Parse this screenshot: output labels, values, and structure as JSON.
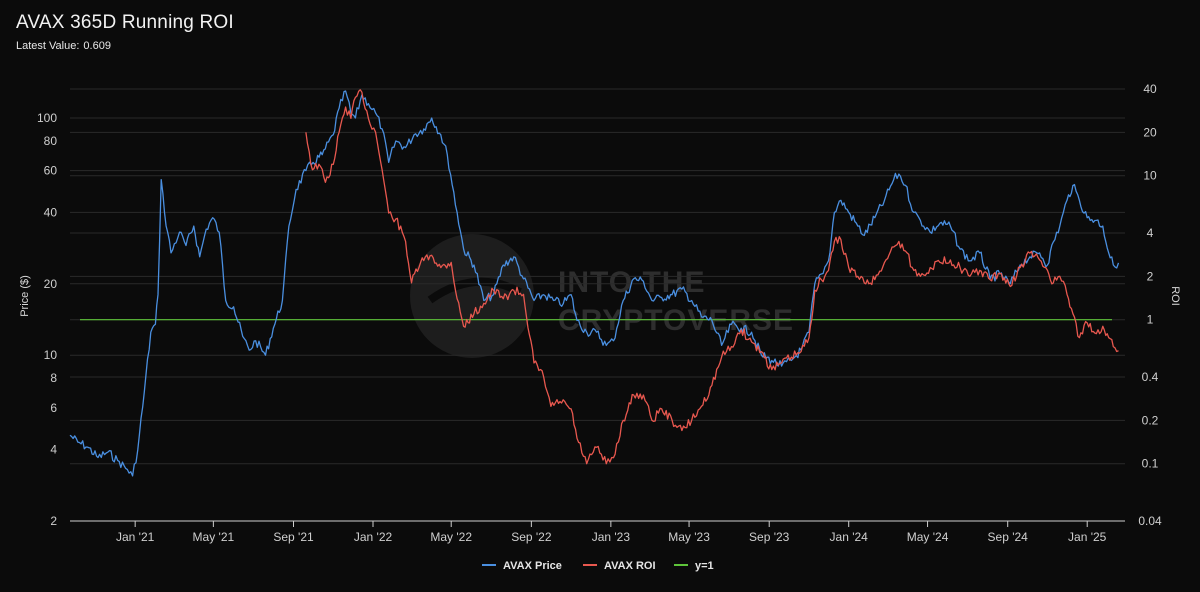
{
  "header": {
    "title": "AVAX 365D Running ROI",
    "latest_label": "Latest Value:",
    "latest_value": "0.609"
  },
  "watermark": {
    "line1": "INTO THE",
    "line2": "CRYPTOVERSE"
  },
  "colors": {
    "background": "#0b0b0b",
    "grid": "#2a2a2a",
    "price": "#4a8fe0",
    "roi": "#e8584f",
    "reference": "#5ec43a"
  },
  "chart_data": {
    "type": "line",
    "title": "AVAX 365D Running ROI",
    "x_type": "date",
    "x_range": [
      "2020-09-23",
      "2025-02-28"
    ],
    "x_ticks": [
      {
        "date": "2021-01-01",
        "label": "Jan '21"
      },
      {
        "date": "2021-05-01",
        "label": "May '21"
      },
      {
        "date": "2021-09-01",
        "label": "Sep '21"
      },
      {
        "date": "2022-01-01",
        "label": "Jan '22"
      },
      {
        "date": "2022-05-01",
        "label": "May '22"
      },
      {
        "date": "2022-09-01",
        "label": "Sep '22"
      },
      {
        "date": "2023-01-01",
        "label": "Jan '23"
      },
      {
        "date": "2023-05-01",
        "label": "May '23"
      },
      {
        "date": "2023-09-01",
        "label": "Sep '23"
      },
      {
        "date": "2024-01-01",
        "label": "Jan '24"
      },
      {
        "date": "2024-05-01",
        "label": "May '24"
      },
      {
        "date": "2024-09-01",
        "label": "Sep '24"
      },
      {
        "date": "2025-01-01",
        "label": "Jan '25"
      }
    ],
    "y_left": {
      "label": "Price ($)",
      "scale": "log",
      "range": [
        1.6,
        150
      ],
      "ticks": [
        2,
        4,
        6,
        8,
        10,
        20,
        40,
        60,
        80,
        100
      ]
    },
    "y_right": {
      "label": "ROI",
      "scale": "log",
      "range": [
        0.04,
        40
      ],
      "ticks": [
        0.04,
        0.1,
        0.2,
        0.4,
        1,
        2,
        4,
        10,
        20,
        40
      ]
    },
    "grid": true,
    "legend_position": "bottom-center",
    "series": [
      {
        "name": "AVAX Price",
        "axis": "left",
        "color": "#4a8fe0",
        "points": [
          [
            "2020-09-23",
            4.6
          ],
          [
            "2020-10-05",
            4.3
          ],
          [
            "2020-10-20",
            4.1
          ],
          [
            "2020-11-05",
            3.7
          ],
          [
            "2020-11-20",
            3.9
          ],
          [
            "2020-12-05",
            3.6
          ],
          [
            "2020-12-20",
            3.3
          ],
          [
            "2020-12-28",
            3.1
          ],
          [
            "2021-01-05",
            4.0
          ],
          [
            "2021-01-15",
            7.0
          ],
          [
            "2021-01-25",
            12.5
          ],
          [
            "2021-02-01",
            13.5
          ],
          [
            "2021-02-05",
            18.0
          ],
          [
            "2021-02-10",
            55.0
          ],
          [
            "2021-02-15",
            40.0
          ],
          [
            "2021-02-25",
            27.0
          ],
          [
            "2021-03-10",
            33.0
          ],
          [
            "2021-03-20",
            29.0
          ],
          [
            "2021-04-01",
            35.0
          ],
          [
            "2021-04-10",
            26.0
          ],
          [
            "2021-04-20",
            34.0
          ],
          [
            "2021-04-30",
            38.0
          ],
          [
            "2021-05-10",
            33.0
          ],
          [
            "2021-05-20",
            17.0
          ],
          [
            "2021-06-01",
            16.0
          ],
          [
            "2021-06-15",
            12.0
          ],
          [
            "2021-06-25",
            10.5
          ],
          [
            "2021-07-05",
            11.5
          ],
          [
            "2021-07-20",
            10.0
          ],
          [
            "2021-08-01",
            13.0
          ],
          [
            "2021-08-15",
            17.0
          ],
          [
            "2021-08-25",
            35.0
          ],
          [
            "2021-09-05",
            50.0
          ],
          [
            "2021-09-20",
            60.0
          ],
          [
            "2021-10-01",
            65.0
          ],
          [
            "2021-10-15",
            70.0
          ],
          [
            "2021-11-01",
            85.0
          ],
          [
            "2021-11-10",
            110.0
          ],
          [
            "2021-11-20",
            130.0
          ],
          [
            "2021-11-28",
            105.0
          ],
          [
            "2021-12-05",
            100.0
          ],
          [
            "2021-12-15",
            125.0
          ],
          [
            "2021-12-25",
            115.0
          ],
          [
            "2022-01-05",
            105.0
          ],
          [
            "2022-01-15",
            90.0
          ],
          [
            "2022-01-25",
            65.0
          ],
          [
            "2022-02-05",
            80.0
          ],
          [
            "2022-02-20",
            75.0
          ],
          [
            "2022-03-05",
            85.0
          ],
          [
            "2022-03-20",
            90.0
          ],
          [
            "2022-04-01",
            100.0
          ],
          [
            "2022-04-15",
            85.0
          ],
          [
            "2022-04-25",
            70.0
          ],
          [
            "2022-05-10",
            40.0
          ],
          [
            "2022-05-20",
            28.0
          ],
          [
            "2022-06-05",
            24.0
          ],
          [
            "2022-06-20",
            17.0
          ],
          [
            "2022-07-05",
            18.0
          ],
          [
            "2022-07-20",
            24.0
          ],
          [
            "2022-08-05",
            26.0
          ],
          [
            "2022-08-20",
            21.0
          ],
          [
            "2022-09-05",
            17.0
          ],
          [
            "2022-09-20",
            18.0
          ],
          [
            "2022-10-05",
            17.0
          ],
          [
            "2022-10-20",
            16.5
          ],
          [
            "2022-11-01",
            18.0
          ],
          [
            "2022-11-10",
            14.0
          ],
          [
            "2022-11-25",
            12.5
          ],
          [
            "2022-12-10",
            12.5
          ],
          [
            "2022-12-25",
            11.0
          ],
          [
            "2023-01-05",
            11.5
          ],
          [
            "2023-01-20",
            17.0
          ],
          [
            "2023-02-05",
            21.0
          ],
          [
            "2023-02-20",
            20.5
          ],
          [
            "2023-03-05",
            17.0
          ],
          [
            "2023-03-20",
            17.5
          ],
          [
            "2023-04-05",
            18.0
          ],
          [
            "2023-04-20",
            19.0
          ],
          [
            "2023-05-05",
            17.0
          ],
          [
            "2023-05-20",
            14.5
          ],
          [
            "2023-06-05",
            14.0
          ],
          [
            "2023-06-20",
            11.0
          ],
          [
            "2023-07-05",
            13.5
          ],
          [
            "2023-07-20",
            13.0
          ],
          [
            "2023-08-05",
            12.5
          ],
          [
            "2023-08-20",
            10.0
          ],
          [
            "2023-09-05",
            9.5
          ],
          [
            "2023-09-20",
            9.0
          ],
          [
            "2023-10-05",
            9.5
          ],
          [
            "2023-10-20",
            10.5
          ],
          [
            "2023-11-01",
            12.5
          ],
          [
            "2023-11-10",
            20.0
          ],
          [
            "2023-11-20",
            22.0
          ],
          [
            "2023-12-01",
            25.0
          ],
          [
            "2023-12-10",
            40.0
          ],
          [
            "2023-12-20",
            45.0
          ],
          [
            "2024-01-01",
            40.0
          ],
          [
            "2024-01-15",
            35.0
          ],
          [
            "2024-01-25",
            32.0
          ],
          [
            "2024-02-10",
            38.0
          ],
          [
            "2024-02-25",
            45.0
          ],
          [
            "2024-03-10",
            55.0
          ],
          [
            "2024-03-18",
            58.0
          ],
          [
            "2024-03-28",
            52.0
          ],
          [
            "2024-04-10",
            40.0
          ],
          [
            "2024-04-20",
            37.0
          ],
          [
            "2024-05-05",
            33.0
          ],
          [
            "2024-05-20",
            36.0
          ],
          [
            "2024-06-05",
            35.0
          ],
          [
            "2024-06-20",
            28.0
          ],
          [
            "2024-07-05",
            25.0
          ],
          [
            "2024-07-20",
            27.0
          ],
          [
            "2024-08-05",
            21.0
          ],
          [
            "2024-08-20",
            22.0
          ],
          [
            "2024-09-05",
            20.0
          ],
          [
            "2024-09-20",
            24.0
          ],
          [
            "2024-10-05",
            26.0
          ],
          [
            "2024-10-20",
            27.0
          ],
          [
            "2024-11-01",
            24.0
          ],
          [
            "2024-11-10",
            30.0
          ],
          [
            "2024-11-20",
            35.0
          ],
          [
            "2024-12-01",
            45.0
          ],
          [
            "2024-12-10",
            52.0
          ],
          [
            "2024-12-20",
            45.0
          ],
          [
            "2025-01-01",
            38.0
          ],
          [
            "2025-01-15",
            37.0
          ],
          [
            "2025-01-25",
            35.0
          ],
          [
            "2025-02-03",
            27.0
          ],
          [
            "2025-02-10",
            24.0
          ],
          [
            "2025-02-18",
            24.5
          ]
        ]
      },
      {
        "name": "AVAX ROI",
        "axis": "right",
        "color": "#e8584f",
        "points": [
          [
            "2021-09-20",
            20.0
          ],
          [
            "2021-09-30",
            11.0
          ],
          [
            "2021-10-10",
            12.0
          ],
          [
            "2021-10-20",
            9.0
          ],
          [
            "2021-11-01",
            12.0
          ],
          [
            "2021-11-10",
            20.0
          ],
          [
            "2021-11-20",
            30.0
          ],
          [
            "2021-11-28",
            25.0
          ],
          [
            "2021-12-05",
            35.0
          ],
          [
            "2021-12-15",
            38.0
          ],
          [
            "2021-12-25",
            25.0
          ],
          [
            "2022-01-05",
            20.0
          ],
          [
            "2022-01-15",
            11.0
          ],
          [
            "2022-01-25",
            5.5
          ],
          [
            "2022-02-05",
            5.0
          ],
          [
            "2022-02-20",
            3.5
          ],
          [
            "2022-03-01",
            1.8
          ],
          [
            "2022-03-15",
            2.5
          ],
          [
            "2022-04-01",
            2.8
          ],
          [
            "2022-04-15",
            2.3
          ],
          [
            "2022-05-01",
            2.5
          ],
          [
            "2022-05-10",
            1.4
          ],
          [
            "2022-05-20",
            0.9
          ],
          [
            "2022-06-05",
            1.1
          ],
          [
            "2022-06-20",
            1.3
          ],
          [
            "2022-07-05",
            1.6
          ],
          [
            "2022-07-20",
            1.4
          ],
          [
            "2022-08-05",
            1.6
          ],
          [
            "2022-08-20",
            1.5
          ],
          [
            "2022-09-05",
            0.5
          ],
          [
            "2022-09-20",
            0.4
          ],
          [
            "2022-10-01",
            0.25
          ],
          [
            "2022-10-15",
            0.27
          ],
          [
            "2022-11-01",
            0.24
          ],
          [
            "2022-11-10",
            0.15
          ],
          [
            "2022-11-25",
            0.1
          ],
          [
            "2022-12-10",
            0.13
          ],
          [
            "2022-12-25",
            0.1
          ],
          [
            "2023-01-05",
            0.11
          ],
          [
            "2023-01-20",
            0.2
          ],
          [
            "2023-02-05",
            0.3
          ],
          [
            "2023-02-20",
            0.3
          ],
          [
            "2023-03-05",
            0.2
          ],
          [
            "2023-03-20",
            0.24
          ],
          [
            "2023-04-05",
            0.2
          ],
          [
            "2023-04-20",
            0.17
          ],
          [
            "2023-05-05",
            0.2
          ],
          [
            "2023-05-20",
            0.25
          ],
          [
            "2023-06-05",
            0.35
          ],
          [
            "2023-06-20",
            0.55
          ],
          [
            "2023-07-05",
            0.65
          ],
          [
            "2023-07-20",
            0.85
          ],
          [
            "2023-08-05",
            0.7
          ],
          [
            "2023-08-20",
            0.6
          ],
          [
            "2023-09-05",
            0.45
          ],
          [
            "2023-09-20",
            0.5
          ],
          [
            "2023-10-05",
            0.55
          ],
          [
            "2023-10-20",
            0.6
          ],
          [
            "2023-11-01",
            0.75
          ],
          [
            "2023-11-10",
            1.6
          ],
          [
            "2023-11-20",
            1.9
          ],
          [
            "2023-12-01",
            2.2
          ],
          [
            "2023-12-10",
            3.5
          ],
          [
            "2023-12-20",
            3.6
          ],
          [
            "2024-01-01",
            2.3
          ],
          [
            "2024-01-15",
            2.0
          ],
          [
            "2024-01-25",
            1.8
          ],
          [
            "2024-02-10",
            1.9
          ],
          [
            "2024-02-25",
            2.5
          ],
          [
            "2024-03-10",
            3.2
          ],
          [
            "2024-03-18",
            3.5
          ],
          [
            "2024-03-28",
            3.0
          ],
          [
            "2024-04-10",
            2.2
          ],
          [
            "2024-04-20",
            2.0
          ],
          [
            "2024-05-05",
            2.3
          ],
          [
            "2024-05-20",
            2.5
          ],
          [
            "2024-06-05",
            2.6
          ],
          [
            "2024-06-20",
            2.3
          ],
          [
            "2024-07-05",
            2.0
          ],
          [
            "2024-07-20",
            2.2
          ],
          [
            "2024-08-05",
            1.9
          ],
          [
            "2024-08-20",
            2.1
          ],
          [
            "2024-09-05",
            1.7
          ],
          [
            "2024-09-20",
            2.3
          ],
          [
            "2024-10-05",
            2.9
          ],
          [
            "2024-10-20",
            2.6
          ],
          [
            "2024-11-01",
            2.2
          ],
          [
            "2024-11-10",
            1.8
          ],
          [
            "2024-11-20",
            2.0
          ],
          [
            "2024-12-01",
            1.5
          ],
          [
            "2024-12-10",
            1.1
          ],
          [
            "2024-12-20",
            0.75
          ],
          [
            "2025-01-01",
            0.95
          ],
          [
            "2025-01-15",
            0.8
          ],
          [
            "2025-01-25",
            0.9
          ],
          [
            "2025-02-03",
            0.75
          ],
          [
            "2025-02-10",
            0.65
          ],
          [
            "2025-02-18",
            0.609
          ]
        ]
      },
      {
        "name": "y=1",
        "axis": "right",
        "color": "#5ec43a",
        "constant": 1
      }
    ]
  }
}
